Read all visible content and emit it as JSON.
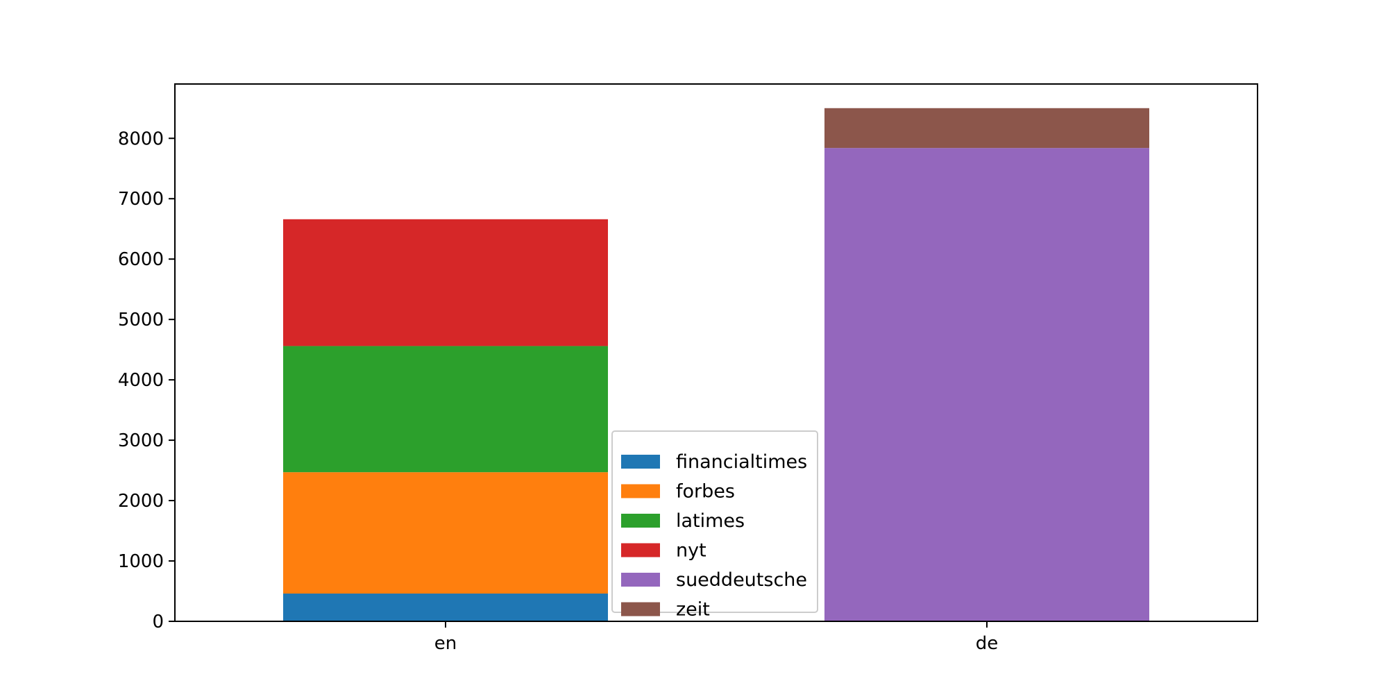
{
  "chart_data": {
    "type": "bar",
    "stacked": true,
    "title": "",
    "xlabel": "",
    "ylabel": "",
    "categories": [
      "en",
      "de"
    ],
    "ylim": [
      0,
      8900
    ],
    "yticks": [
      0,
      1000,
      2000,
      3000,
      4000,
      5000,
      6000,
      7000,
      8000
    ],
    "grid": false,
    "legend_position": "lower-center",
    "series": [
      {
        "name": "financialtimes",
        "color": "#1f77b4",
        "values": [
          460,
          0
        ]
      },
      {
        "name": "forbes",
        "color": "#ff7f0e",
        "values": [
          2010,
          0
        ]
      },
      {
        "name": "latimes",
        "color": "#2ca02c",
        "values": [
          2090,
          0
        ]
      },
      {
        "name": "nyt",
        "color": "#d62728",
        "values": [
          2100,
          0
        ]
      },
      {
        "name": "sueddeutsche",
        "color": "#9467bd",
        "values": [
          0,
          7840
        ]
      },
      {
        "name": "zeit",
        "color": "#8c564b",
        "values": [
          0,
          660
        ]
      }
    ]
  }
}
